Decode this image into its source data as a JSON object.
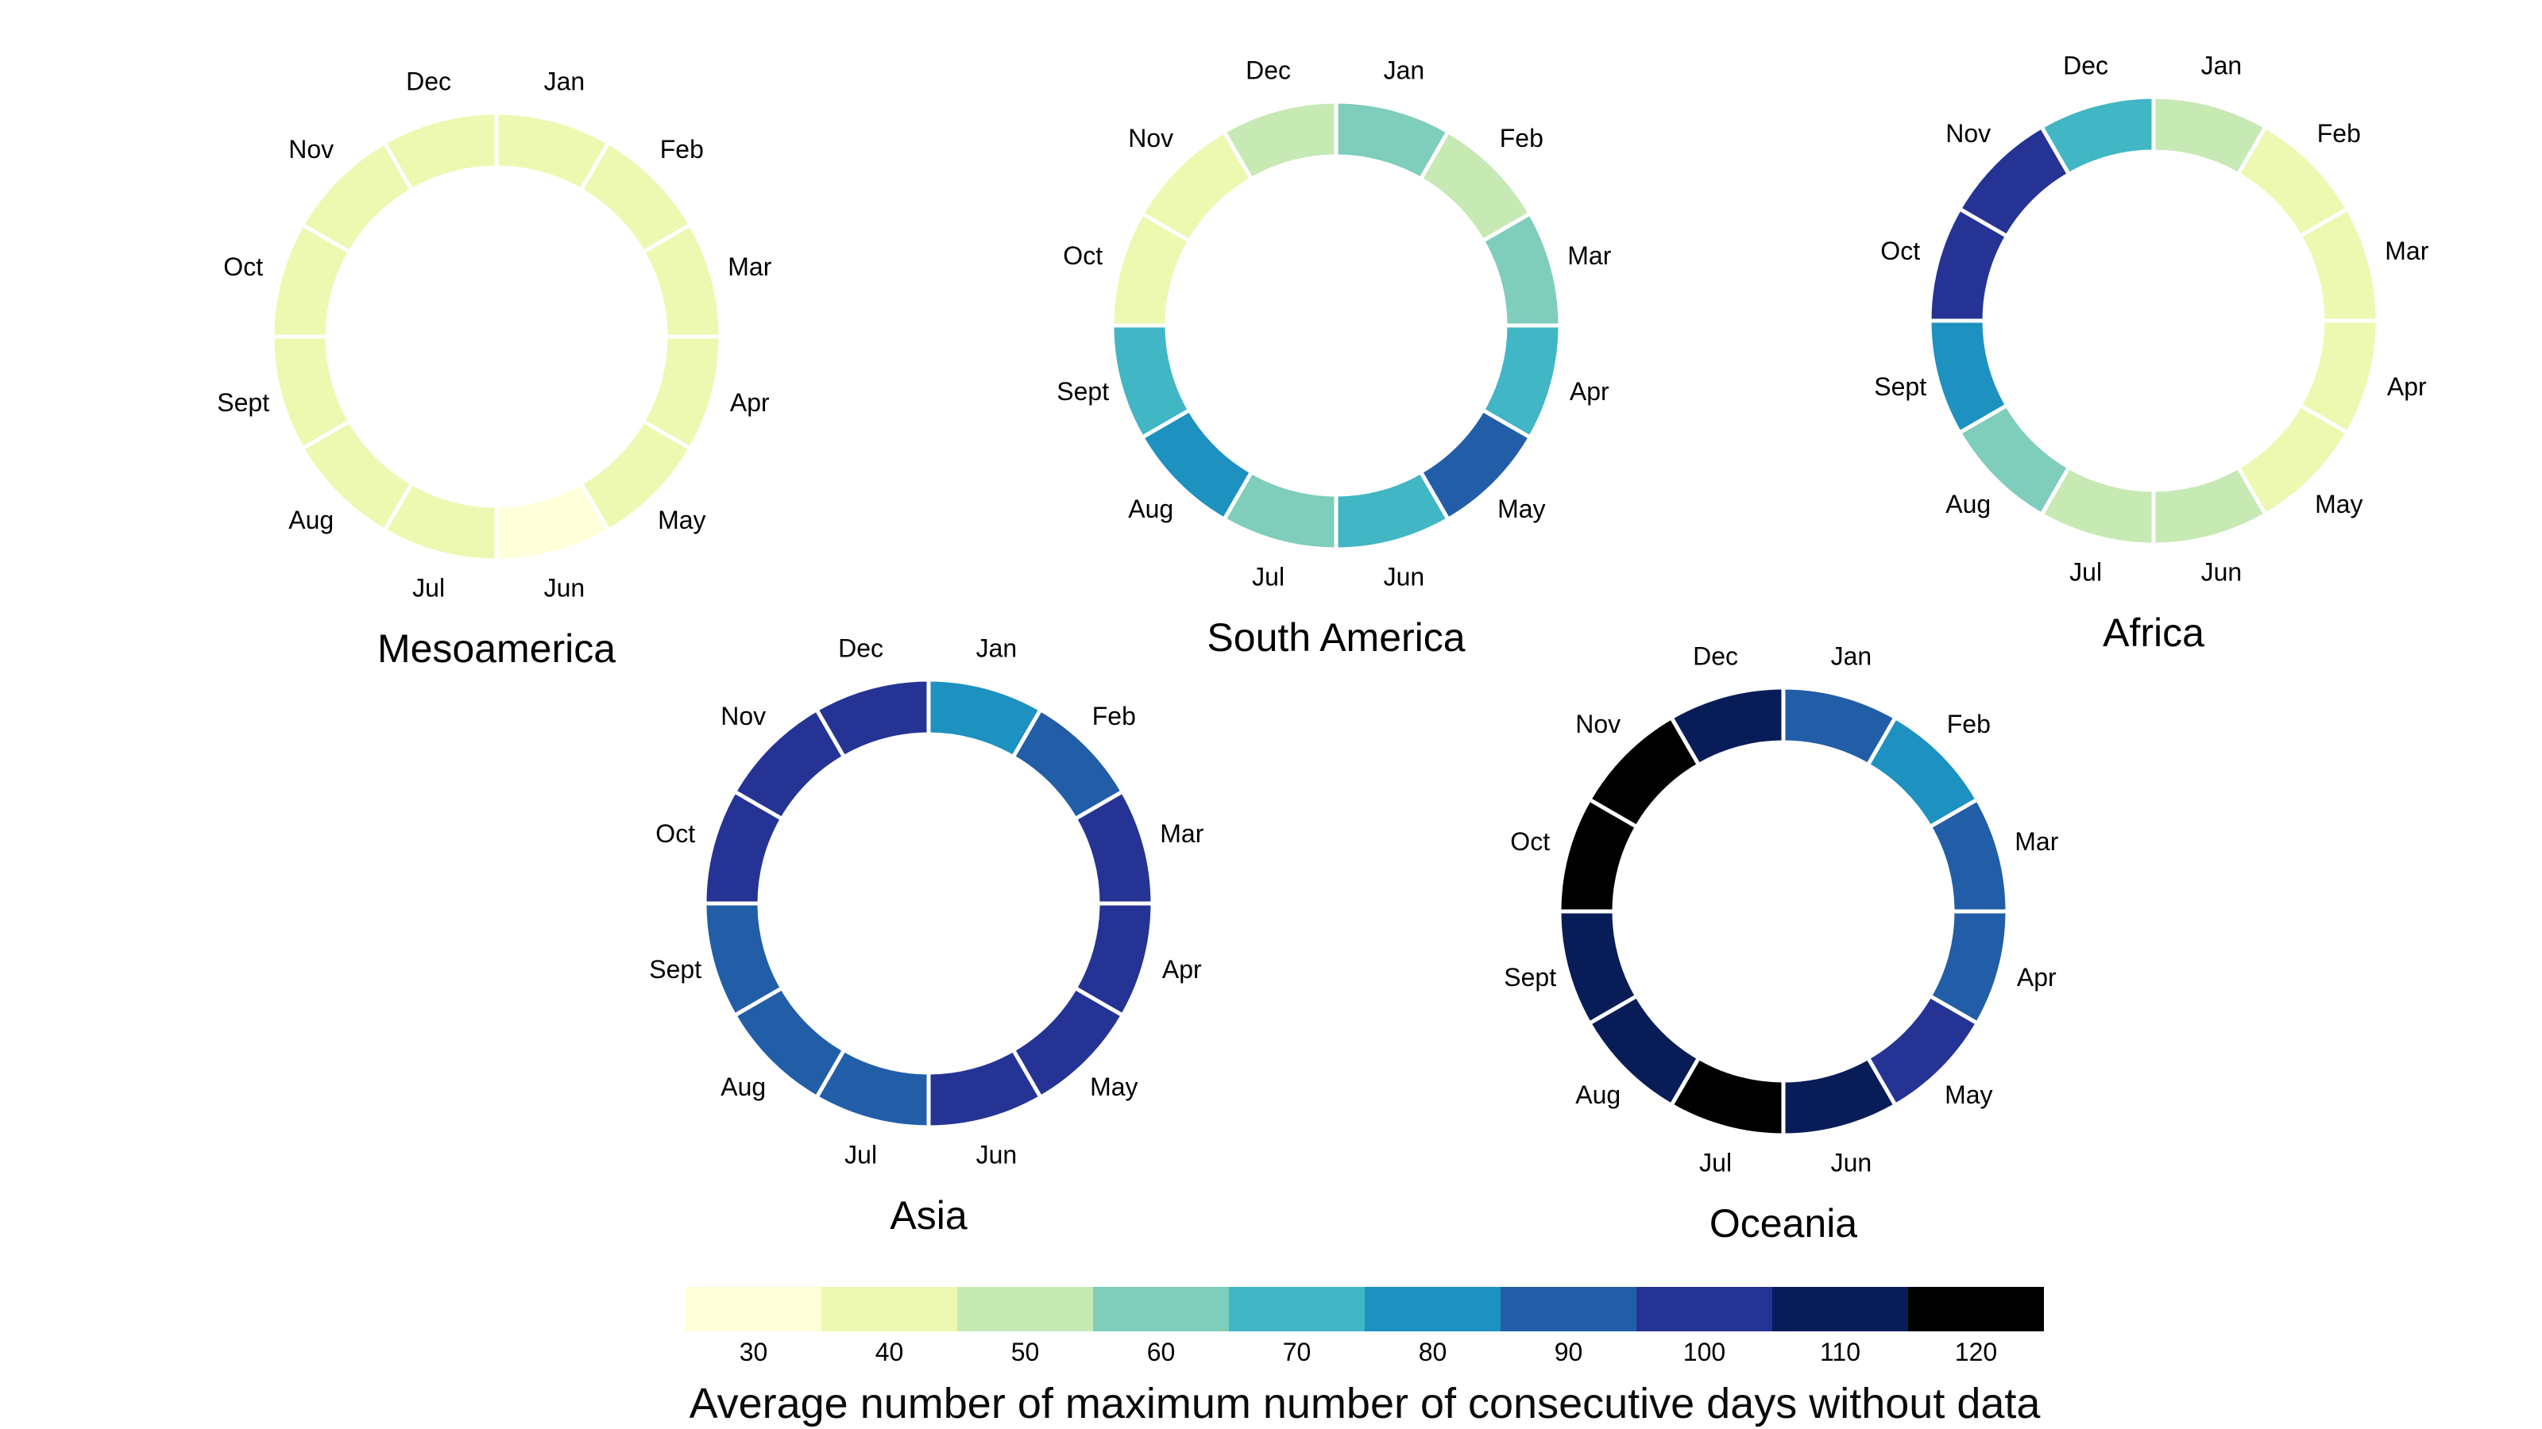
{
  "chart_data": {
    "type": "pie",
    "variant": "donut rings; one ring per region; 12 equal month segments colored by value",
    "categories": [
      "Jan",
      "Feb",
      "Mar",
      "Apr",
      "May",
      "Jun",
      "Jul",
      "Aug",
      "Sept",
      "Oct",
      "Nov",
      "Dec"
    ],
    "series": [
      {
        "name": "Mesoamerica",
        "values": [
          40,
          40,
          40,
          40,
          40,
          30,
          40,
          40,
          40,
          40,
          40,
          40
        ]
      },
      {
        "name": "South America",
        "values": [
          60,
          50,
          60,
          70,
          90,
          70,
          60,
          80,
          70,
          40,
          40,
          50
        ]
      },
      {
        "name": "Africa",
        "values": [
          50,
          40,
          40,
          40,
          40,
          50,
          50,
          60,
          80,
          100,
          100,
          70
        ]
      },
      {
        "name": "Asia",
        "values": [
          80,
          90,
          100,
          100,
          100,
          100,
          90,
          90,
          90,
          100,
          100,
          100
        ]
      },
      {
        "name": "Oceania",
        "values": [
          90,
          80,
          90,
          90,
          100,
          110,
          120,
          110,
          110,
          120,
          120,
          110
        ]
      }
    ],
    "legend_title": "Average number of maximum number of consecutive days without data",
    "value_ticks": [
      30,
      40,
      50,
      60,
      70,
      80,
      90,
      100,
      110,
      120
    ],
    "colormap": {
      "30": "#ffffd9",
      "40": "#edf8b1",
      "50": "#c7e9b4",
      "60": "#7fcdbb",
      "70": "#41b6c4",
      "80": "#1d91c0",
      "90": "#225ea8",
      "100": "#253494",
      "110": "#081d58",
      "120": "#000000"
    },
    "legend_position": "bottom",
    "grid": false
  }
}
